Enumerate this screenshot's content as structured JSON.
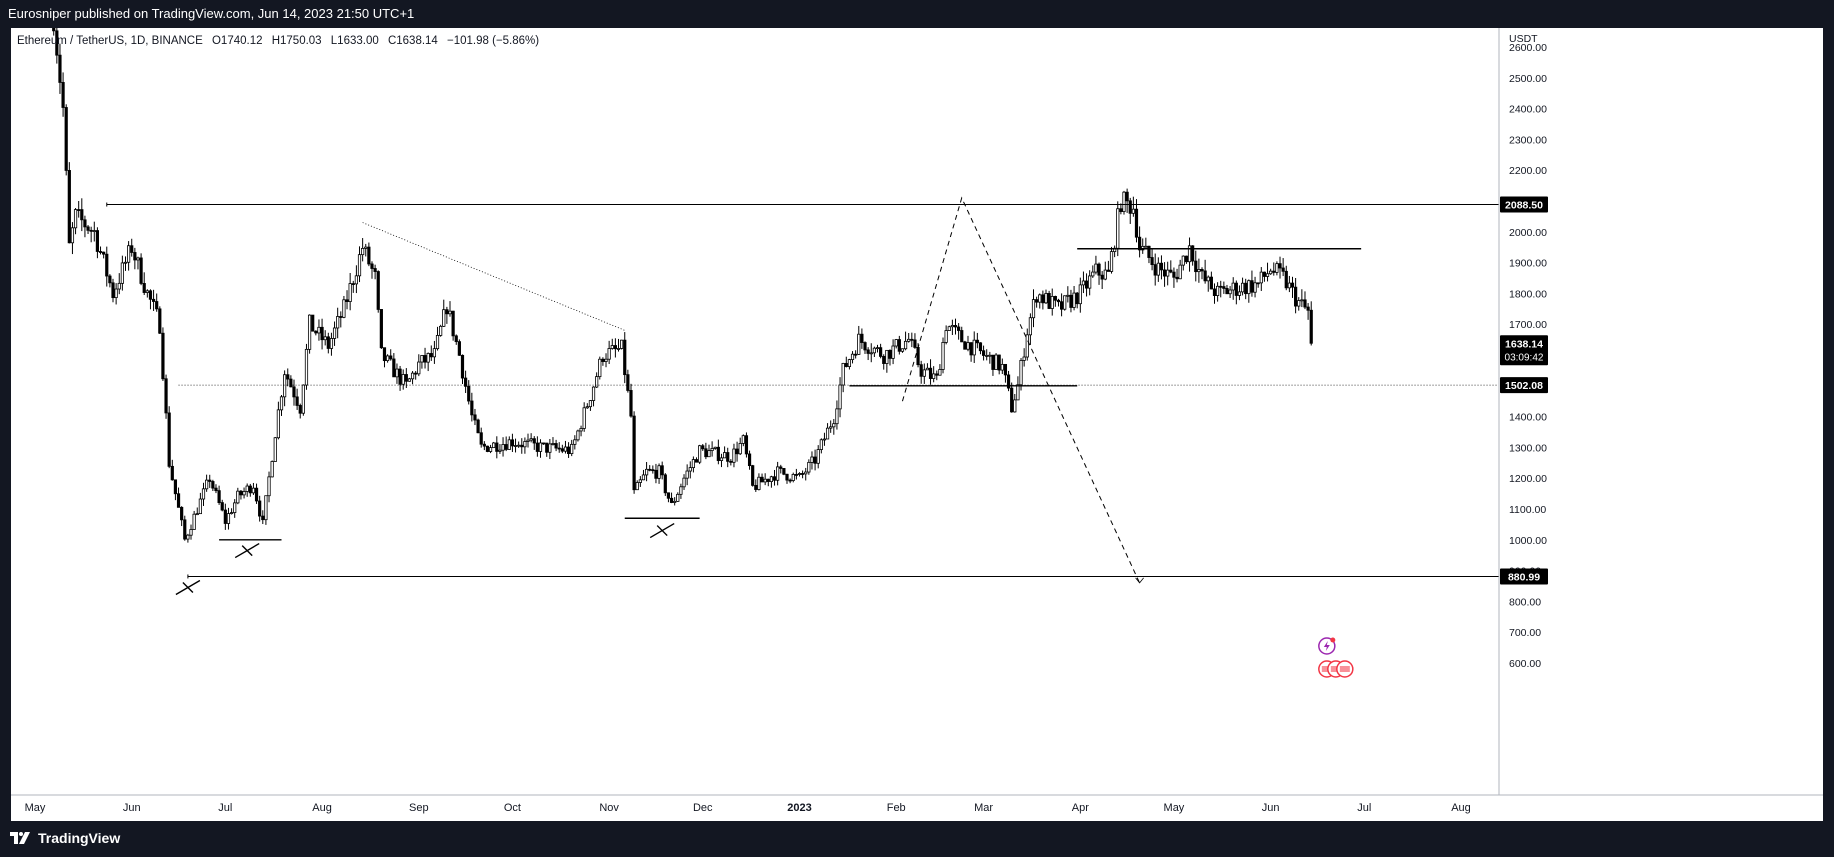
{
  "header": {
    "published": "Eurosniper published on TradingView.com, Jun 14, 2023 21:50 UTC+1"
  },
  "legend": {
    "symbol": "Ethereum / TetherUS, 1D, BINANCE",
    "open": "O1740.12",
    "high": "H1750.03",
    "low": "L1633.00",
    "close": "C1638.14",
    "change": "−101.98 (−5.86%)"
  },
  "footer": {
    "brand": "TradingView",
    "icon": "tradingview-logo-icon"
  },
  "colors": {
    "background": "#ffffff",
    "chrome": "#131722",
    "candle": "#000000",
    "grid_text": "#787b86"
  },
  "chart_data": {
    "type": "candlestick",
    "title": "Ethereum / TetherUS, 1D, BINANCE",
    "currency_label": "USDT",
    "x_range": [
      "2022-05-01",
      "2023-08-31"
    ],
    "ylim": [
      560,
      2640
    ],
    "y_ticks": [
      "600.00",
      "700.00",
      "800.00",
      "900.00",
      "1000.00",
      "1100.00",
      "1200.00",
      "1300.00",
      "1400.00",
      "1500.00",
      "1600.00",
      "1700.00",
      "1800.00",
      "1900.00",
      "2000.00",
      "2100.00",
      "2200.00",
      "2300.00",
      "2400.00",
      "2500.00",
      "2600.00"
    ],
    "x_ticks": [
      {
        "label": "May",
        "date": "2022-05-01"
      },
      {
        "label": "Jun",
        "date": "2022-06-01"
      },
      {
        "label": "Jul",
        "date": "2022-07-01"
      },
      {
        "label": "Aug",
        "date": "2022-08-01"
      },
      {
        "label": "Sep",
        "date": "2022-09-01"
      },
      {
        "label": "Oct",
        "date": "2022-10-01"
      },
      {
        "label": "Nov",
        "date": "2022-11-01"
      },
      {
        "label": "Dec",
        "date": "2022-12-01"
      },
      {
        "label": "2023",
        "date": "2023-01-01",
        "bold": true
      },
      {
        "label": "Feb",
        "date": "2023-02-01"
      },
      {
        "label": "Mar",
        "date": "2023-03-01"
      },
      {
        "label": "Apr",
        "date": "2023-04-01"
      },
      {
        "label": "May",
        "date": "2023-05-01"
      },
      {
        "label": "Jun",
        "date": "2023-06-01"
      },
      {
        "label": "Jul",
        "date": "2023-07-01"
      },
      {
        "label": "Aug",
        "date": "2023-08-01"
      }
    ],
    "price_path": [
      [
        "2022-05-07",
        2700
      ],
      [
        "2022-05-10",
        2400
      ],
      [
        "2022-05-12",
        1950
      ],
      [
        "2022-05-14",
        2050
      ],
      [
        "2022-05-20",
        2000
      ],
      [
        "2022-05-26",
        1800
      ],
      [
        "2022-06-01",
        1950
      ],
      [
        "2022-06-06",
        1800
      ],
      [
        "2022-06-10",
        1700
      ],
      [
        "2022-06-13",
        1250
      ],
      [
        "2022-06-18",
        1000
      ],
      [
        "2022-06-22",
        1100
      ],
      [
        "2022-06-26",
        1200
      ],
      [
        "2022-07-01",
        1060
      ],
      [
        "2022-07-05",
        1140
      ],
      [
        "2022-07-10",
        1180
      ],
      [
        "2022-07-13",
        1050
      ],
      [
        "2022-07-17",
        1350
      ],
      [
        "2022-07-20",
        1550
      ],
      [
        "2022-07-25",
        1430
      ],
      [
        "2022-07-28",
        1700
      ],
      [
        "2022-08-03",
        1630
      ],
      [
        "2022-08-08",
        1750
      ],
      [
        "2022-08-14",
        1950
      ],
      [
        "2022-08-18",
        1850
      ],
      [
        "2022-08-20",
        1600
      ],
      [
        "2022-08-28",
        1500
      ],
      [
        "2022-09-01",
        1570
      ],
      [
        "2022-09-06",
        1600
      ],
      [
        "2022-09-10",
        1760
      ],
      [
        "2022-09-14",
        1600
      ],
      [
        "2022-09-18",
        1400
      ],
      [
        "2022-09-21",
        1300
      ],
      [
        "2022-10-01",
        1320
      ],
      [
        "2022-10-10",
        1300
      ],
      [
        "2022-10-20",
        1290
      ],
      [
        "2022-10-26",
        1470
      ],
      [
        "2022-10-30",
        1600
      ],
      [
        "2022-11-05",
        1620
      ],
      [
        "2022-11-08",
        1400
      ],
      [
        "2022-11-09",
        1150
      ],
      [
        "2022-11-13",
        1220
      ],
      [
        "2022-11-17",
        1220
      ],
      [
        "2022-11-21",
        1110
      ],
      [
        "2022-11-25",
        1200
      ],
      [
        "2022-11-30",
        1290
      ],
      [
        "2022-12-10",
        1270
      ],
      [
        "2022-12-14",
        1320
      ],
      [
        "2022-12-17",
        1170
      ],
      [
        "2022-12-25",
        1220
      ],
      [
        "2023-01-01",
        1200
      ],
      [
        "2023-01-06",
        1260
      ],
      [
        "2023-01-12",
        1400
      ],
      [
        "2023-01-15",
        1550
      ],
      [
        "2023-01-20",
        1650
      ],
      [
        "2023-01-28",
        1600
      ],
      [
        "2023-02-05",
        1650
      ],
      [
        "2023-02-09",
        1550
      ],
      [
        "2023-02-14",
        1520
      ],
      [
        "2023-02-17",
        1700
      ],
      [
        "2023-02-22",
        1650
      ],
      [
        "2023-03-01",
        1600
      ],
      [
        "2023-03-07",
        1560
      ],
      [
        "2023-03-10",
        1430
      ],
      [
        "2023-03-12",
        1500
      ],
      [
        "2023-03-15",
        1680
      ],
      [
        "2023-03-18",
        1800
      ],
      [
        "2023-03-25",
        1750
      ],
      [
        "2023-04-01",
        1800
      ],
      [
        "2023-04-06",
        1870
      ],
      [
        "2023-04-10",
        1860
      ],
      [
        "2023-04-14",
        2100
      ],
      [
        "2023-04-18",
        2080
      ],
      [
        "2023-04-20",
        1950
      ],
      [
        "2023-04-26",
        1880
      ],
      [
        "2023-05-01",
        1850
      ],
      [
        "2023-05-06",
        1950
      ],
      [
        "2023-05-10",
        1850
      ],
      [
        "2023-05-15",
        1800
      ],
      [
        "2023-05-22",
        1820
      ],
      [
        "2023-05-28",
        1830
      ],
      [
        "2023-06-01",
        1880
      ],
      [
        "2023-06-05",
        1850
      ],
      [
        "2023-06-10",
        1770
      ],
      [
        "2023-06-13",
        1740
      ],
      [
        "2023-06-14",
        1638
      ]
    ],
    "levels": [
      {
        "name": "resistance",
        "value": 2088.5,
        "label": "2088.50",
        "style": "solid",
        "from": "2022-05-24"
      },
      {
        "name": "mid",
        "value": 1502.08,
        "label": "1502.08",
        "style": "dotted",
        "from": "2022-06-16"
      },
      {
        "name": "support",
        "value": 880.99,
        "label": "880.99",
        "style": "solid",
        "from": "2022-06-19"
      }
    ],
    "last_price": {
      "value": 1638.14,
      "label": "1638.14",
      "countdown": "03:09:42"
    },
    "drawings": {
      "trend_dotted": [
        [
          "2022-08-14",
          2030
        ],
        [
          "2022-11-06",
          1680
        ]
      ],
      "zigzag_dashed": [
        [
          "2023-02-03",
          1450
        ],
        [
          "2023-02-22",
          2110
        ],
        [
          "2023-04-20",
          860
        ]
      ],
      "hlines": [
        {
          "from": "2023-03-31",
          "to": "2023-06-30",
          "value": 1945
        },
        {
          "from": "2023-01-17",
          "to": "2023-03-31",
          "value": 1500
        },
        {
          "from": "2022-06-29",
          "to": "2022-07-19",
          "value": 1000
        },
        {
          "from": "2022-11-06",
          "to": "2022-11-30",
          "value": 1070
        }
      ],
      "cross_marks": [
        [
          "2022-06-19",
          845
        ],
        [
          "2022-07-08",
          965
        ],
        [
          "2022-11-18",
          1030
        ]
      ]
    }
  }
}
